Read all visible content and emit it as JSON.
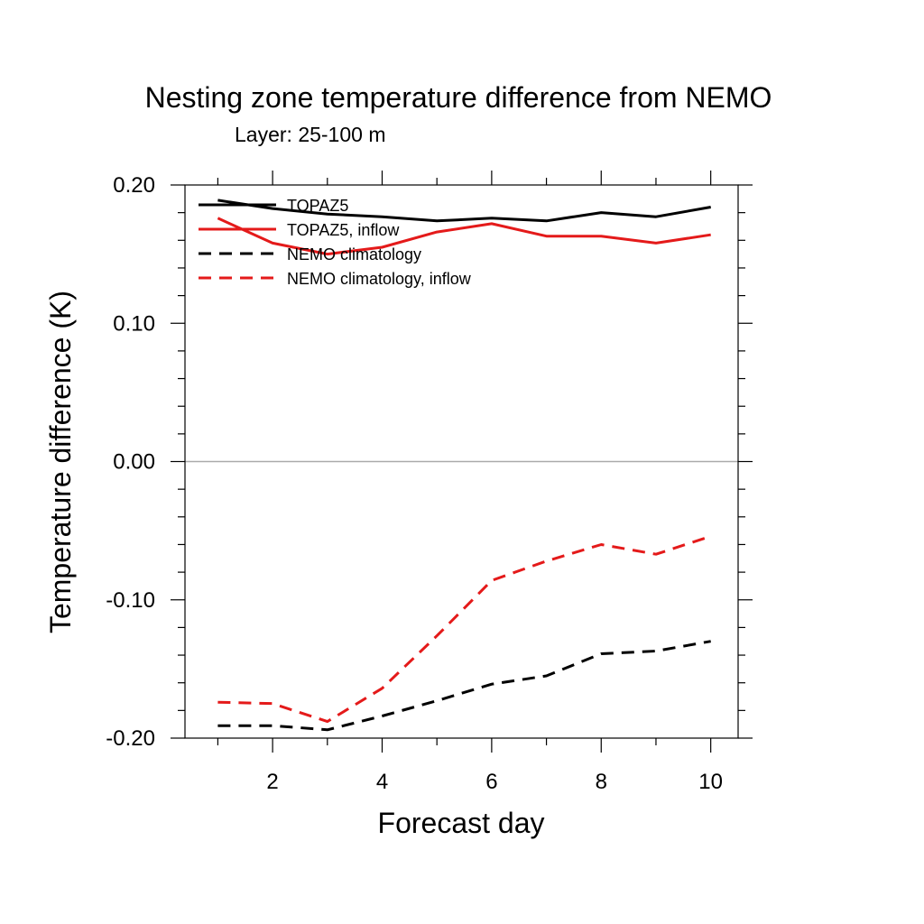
{
  "chart_data": {
    "type": "line",
    "title": "Nesting zone temperature difference from NEMO",
    "subtitle": "Layer: 25-100 m",
    "xlabel": "Forecast day",
    "ylabel": "Temperature difference (K)",
    "xlim": [
      0.4,
      10.5
    ],
    "ylim": [
      -0.2,
      0.2
    ],
    "x_ticks": [
      2,
      4,
      6,
      8,
      10
    ],
    "y_ticks": [
      -0.2,
      -0.1,
      0.0,
      0.1,
      0.2
    ],
    "y_tick_labels": [
      "-0.20",
      "-0.10",
      "0.00",
      "0.10",
      "0.20"
    ],
    "x": [
      1,
      2,
      3,
      4,
      5,
      6,
      7,
      8,
      9,
      10
    ],
    "reference_line": 0,
    "legend_position": "top-left inside",
    "series": [
      {
        "name": "TOPAZ5",
        "color": "#000000",
        "dash": "solid",
        "values": [
          0.189,
          0.183,
          0.179,
          0.177,
          0.174,
          0.176,
          0.174,
          0.18,
          0.177,
          0.184
        ]
      },
      {
        "name": "TOPAZ5, inflow",
        "color": "#e41a1a",
        "dash": "solid",
        "values": [
          0.176,
          0.158,
          0.15,
          0.155,
          0.166,
          0.172,
          0.163,
          0.163,
          0.158,
          0.164
        ]
      },
      {
        "name": "NEMO climatology",
        "color": "#000000",
        "dash": "dashed",
        "values": [
          -0.191,
          -0.191,
          -0.194,
          -0.184,
          -0.173,
          -0.161,
          -0.155,
          -0.139,
          -0.137,
          -0.13
        ]
      },
      {
        "name": "NEMO climatology, inflow",
        "color": "#e41a1a",
        "dash": "dashed",
        "values": [
          -0.174,
          -0.175,
          -0.188,
          -0.164,
          -0.126,
          -0.086,
          -0.072,
          -0.06,
          -0.067,
          -0.054
        ]
      }
    ]
  }
}
